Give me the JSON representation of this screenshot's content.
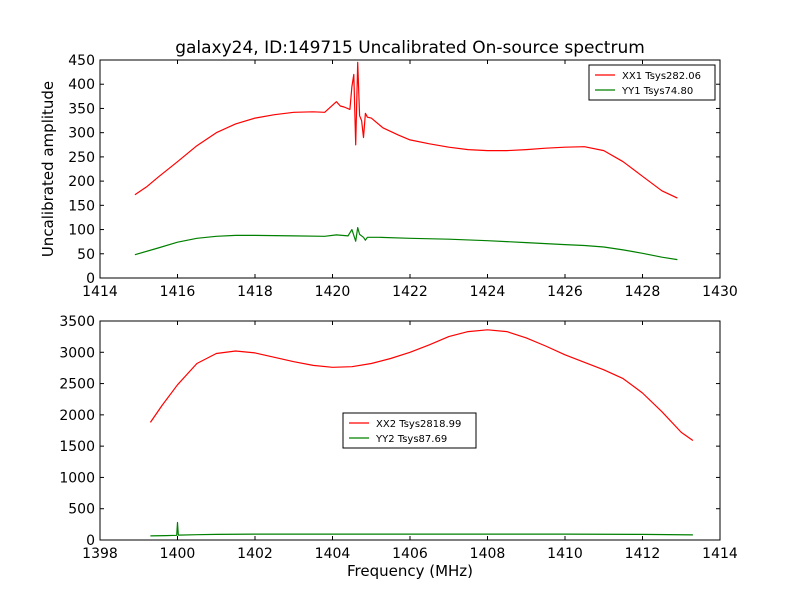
{
  "figure": {
    "title": "galaxy24, ID:149715 Uncalibrated On-source spectrum"
  },
  "colors": {
    "xx": "#ff0000",
    "yy": "#008000",
    "axis": "#000000"
  },
  "chart_data": [
    {
      "type": "line",
      "title": "galaxy24, ID:149715 Uncalibrated On-source spectrum",
      "xlabel": "",
      "ylabel": "Uncalibrated amplitude",
      "xlim": [
        1414,
        1430
      ],
      "ylim": [
        0,
        450
      ],
      "xticks": [
        1414,
        1416,
        1418,
        1420,
        1422,
        1424,
        1426,
        1428,
        1430
      ],
      "yticks": [
        0,
        50,
        100,
        150,
        200,
        250,
        300,
        350,
        400,
        450
      ],
      "legend_position": "top-right",
      "series": [
        {
          "name": "XX1 Tsys282.06",
          "color": "#ff0000",
          "x": [
            1414.9,
            1415.2,
            1415.5,
            1416.0,
            1416.5,
            1417.0,
            1417.5,
            1418.0,
            1418.5,
            1419.0,
            1419.5,
            1419.8,
            1420.1,
            1420.2,
            1420.3,
            1420.45,
            1420.5,
            1420.55,
            1420.6,
            1420.65,
            1420.7,
            1420.75,
            1420.8,
            1420.85,
            1420.9,
            1421.0,
            1421.3,
            1421.7,
            1422.0,
            1422.5,
            1423.0,
            1423.5,
            1424.0,
            1424.5,
            1425.0,
            1425.5,
            1426.0,
            1426.5,
            1427.0,
            1427.5,
            1428.0,
            1428.5,
            1428.9
          ],
          "values": [
            172,
            188,
            208,
            240,
            273,
            300,
            318,
            330,
            337,
            342,
            343,
            342,
            364,
            355,
            353,
            348,
            395,
            420,
            275,
            445,
            335,
            325,
            290,
            340,
            332,
            330,
            310,
            295,
            285,
            277,
            270,
            265,
            263,
            263,
            265,
            268,
            270,
            271,
            263,
            240,
            210,
            180,
            165
          ]
        },
        {
          "name": "YY1 Tsys74.80",
          "color": "#008000",
          "x": [
            1414.9,
            1415.5,
            1416.0,
            1416.5,
            1417.0,
            1417.5,
            1418.0,
            1419.0,
            1419.8,
            1420.1,
            1420.4,
            1420.5,
            1420.6,
            1420.65,
            1420.7,
            1420.8,
            1420.85,
            1420.9,
            1421.2,
            1422.0,
            1423.0,
            1424.0,
            1425.0,
            1426.0,
            1426.5,
            1427.0,
            1427.5,
            1428.0,
            1428.5,
            1428.9
          ],
          "values": [
            48,
            62,
            74,
            82,
            86,
            88,
            88,
            87,
            86,
            89,
            87,
            100,
            76,
            104,
            90,
            84,
            78,
            84,
            84,
            82,
            80,
            77,
            73,
            69,
            67,
            64,
            58,
            51,
            43,
            38
          ]
        }
      ]
    },
    {
      "type": "line",
      "title": "",
      "xlabel": "Frequency (MHz)",
      "ylabel": "",
      "xlim": [
        1398,
        1414
      ],
      "ylim": [
        0,
        3500
      ],
      "xticks": [
        1398,
        1400,
        1402,
        1404,
        1406,
        1408,
        1410,
        1412,
        1414
      ],
      "yticks": [
        0,
        500,
        1000,
        1500,
        2000,
        2500,
        3000,
        3500
      ],
      "legend_position": "center",
      "series": [
        {
          "name": "XX2 Tsys2818.99",
          "color": "#ff0000",
          "x": [
            1399.3,
            1399.6,
            1400.0,
            1400.5,
            1401.0,
            1401.5,
            1402.0,
            1402.5,
            1403.0,
            1403.5,
            1404.0,
            1404.5,
            1405.0,
            1405.5,
            1406.0,
            1406.5,
            1407.0,
            1407.5,
            1408.0,
            1408.5,
            1409.0,
            1409.5,
            1410.0,
            1410.5,
            1411.0,
            1411.5,
            1412.0,
            1412.5,
            1413.0,
            1413.3
          ],
          "values": [
            1880,
            2150,
            2480,
            2820,
            2980,
            3020,
            2990,
            2920,
            2850,
            2790,
            2760,
            2770,
            2820,
            2900,
            3000,
            3120,
            3250,
            3330,
            3360,
            3330,
            3230,
            3100,
            2960,
            2840,
            2720,
            2580,
            2350,
            2050,
            1720,
            1590
          ]
        },
        {
          "name": "YY2 Tsys87.69",
          "color": "#008000",
          "x": [
            1399.3,
            1399.7,
            1399.98,
            1400.0,
            1400.02,
            1400.5,
            1401.0,
            1402.0,
            1404.0,
            1406.0,
            1408.0,
            1410.0,
            1412.0,
            1413.3
          ],
          "values": [
            65,
            70,
            75,
            280,
            78,
            85,
            90,
            95,
            95,
            95,
            95,
            95,
            90,
            82
          ]
        }
      ]
    }
  ]
}
